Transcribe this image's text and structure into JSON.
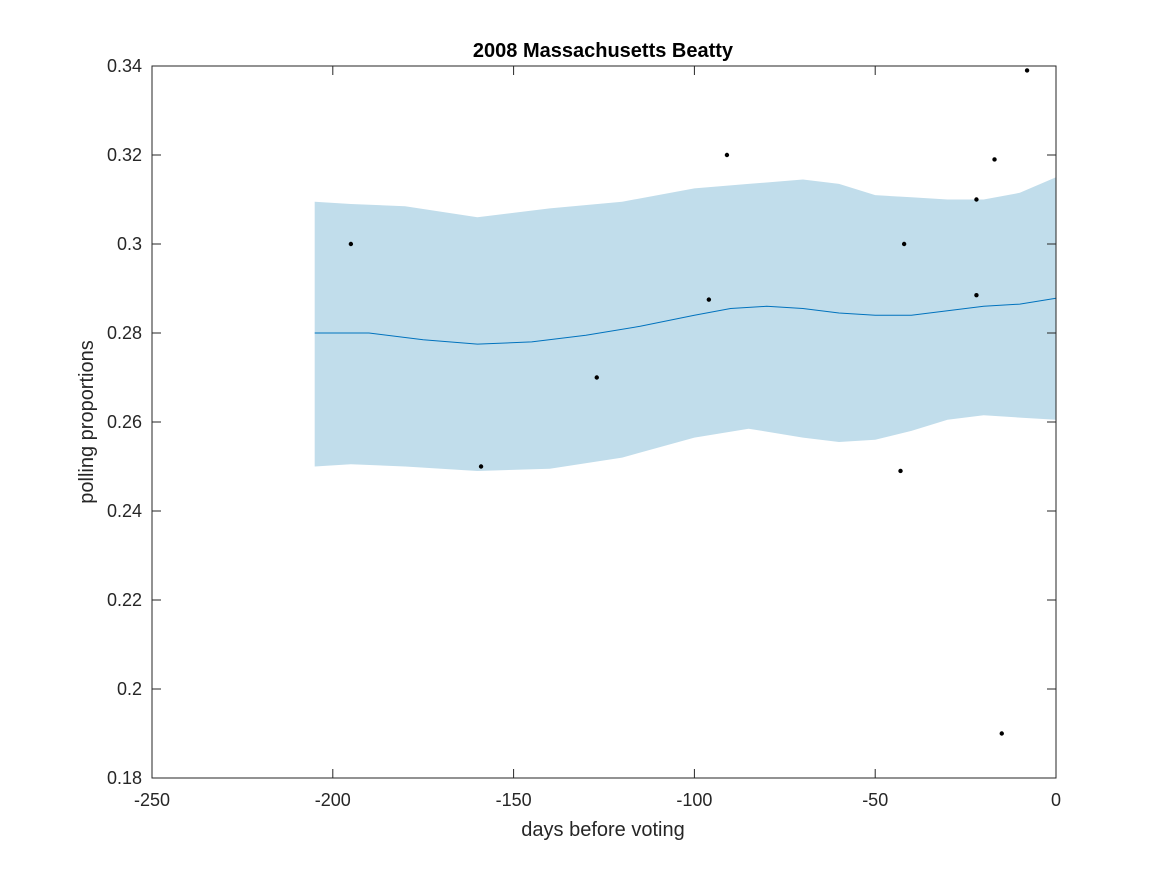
{
  "chart_data": {
    "type": "line",
    "title": "2008 Massachusetts Beatty",
    "xlabel": "days before voting",
    "ylabel": "polling proportions",
    "xlim": [
      -250,
      0
    ],
    "ylim": [
      0.18,
      0.34
    ],
    "xticks": [
      -250,
      -200,
      -150,
      -100,
      -50,
      0
    ],
    "xtick_labels": [
      "-250",
      "-200",
      "-150",
      "-100",
      "-50",
      "0"
    ],
    "yticks": [
      0.18,
      0.2,
      0.22,
      0.24,
      0.26,
      0.28,
      0.3,
      0.32,
      0.34
    ],
    "ytick_labels": [
      "0.18",
      "0.2",
      "0.22",
      "0.24",
      "0.26",
      "0.28",
      "0.3",
      "0.32",
      "0.34"
    ],
    "grid": false,
    "colors": {
      "band": "#c1ddeb",
      "line": "#0072bd",
      "points": "#000000",
      "axes": "#262626"
    },
    "band": {
      "x": [
        -205,
        -195,
        -180,
        -160,
        -140,
        -120,
        -100,
        -85,
        -70,
        -60,
        -50,
        -40,
        -30,
        -20,
        -10,
        0
      ],
      "upper": [
        0.3095,
        0.309,
        0.3085,
        0.306,
        0.308,
        0.3095,
        0.3125,
        0.3135,
        0.3145,
        0.3135,
        0.311,
        0.3105,
        0.31,
        0.31,
        0.3115,
        0.315
      ],
      "lower": [
        0.25,
        0.2505,
        0.25,
        0.249,
        0.2495,
        0.252,
        0.2565,
        0.2585,
        0.2565,
        0.2555,
        0.256,
        0.258,
        0.2605,
        0.2615,
        0.261,
        0.2605
      ]
    },
    "series": [
      {
        "x": [
          -205,
          -190,
          -175,
          -160,
          -145,
          -130,
          -115,
          -100,
          -90,
          -80,
          -70,
          -60,
          -50,
          -40,
          -30,
          -20,
          -10,
          0
        ],
        "values": [
          0.28,
          0.28,
          0.2785,
          0.2775,
          0.278,
          0.2795,
          0.2815,
          0.284,
          0.2855,
          0.286,
          0.2855,
          0.2845,
          0.284,
          0.284,
          0.285,
          0.286,
          0.2865,
          0.2878
        ]
      }
    ],
    "points": [
      {
        "x": -195,
        "y": 0.3
      },
      {
        "x": -159,
        "y": 0.25
      },
      {
        "x": -127,
        "y": 0.27
      },
      {
        "x": -96,
        "y": 0.2875
      },
      {
        "x": -91,
        "y": 0.32
      },
      {
        "x": -43,
        "y": 0.249
      },
      {
        "x": -42,
        "y": 0.3
      },
      {
        "x": -22,
        "y": 0.31
      },
      {
        "x": -22,
        "y": 0.2885
      },
      {
        "x": -17,
        "y": 0.319
      },
      {
        "x": -15,
        "y": 0.19
      },
      {
        "x": -8,
        "y": 0.339
      }
    ]
  }
}
